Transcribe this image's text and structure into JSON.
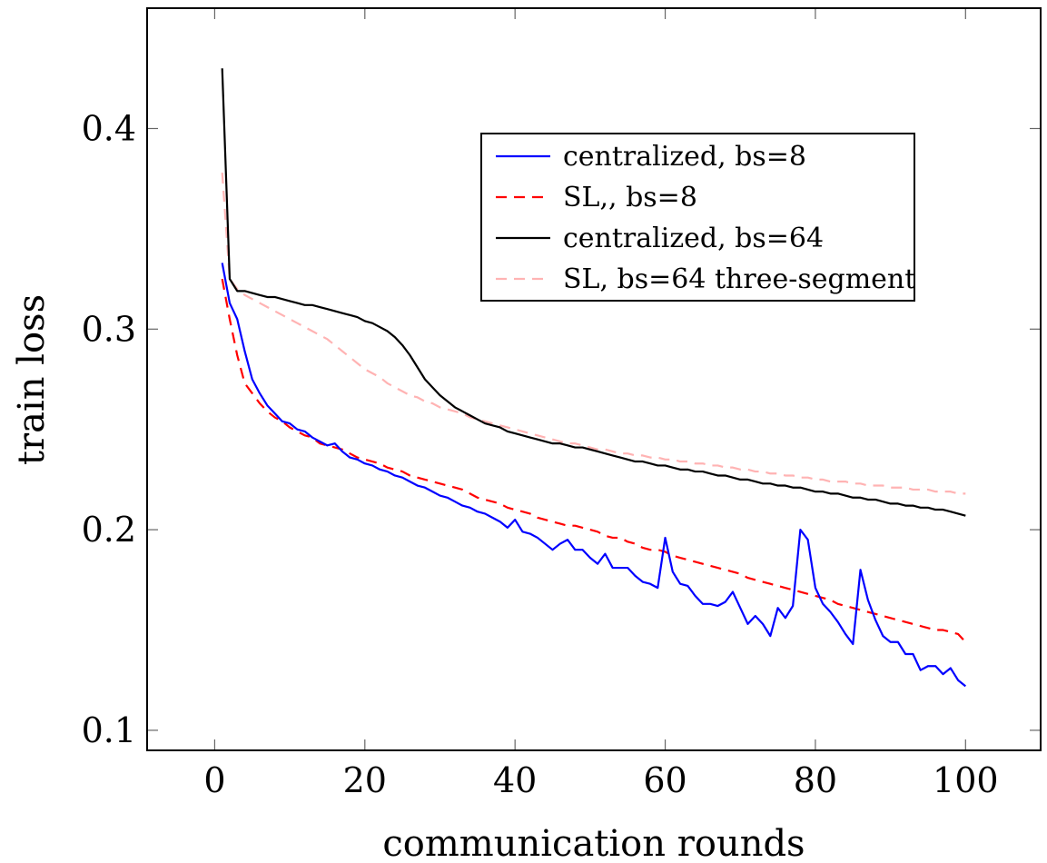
{
  "chart_data": {
    "type": "line",
    "title": "",
    "xlabel": "communication rounds",
    "ylabel": "train loss",
    "xlim": [
      -9,
      110
    ],
    "ylim": [
      0.09,
      0.46
    ],
    "xticks": [
      0,
      20,
      40,
      60,
      80,
      100
    ],
    "yticks": [
      0.1,
      0.2,
      0.3,
      0.4
    ],
    "xtick_labels": [
      "0",
      "20",
      "40",
      "60",
      "80",
      "100"
    ],
    "ytick_labels": [
      "0.1",
      "0.2",
      "0.3",
      "0.4"
    ],
    "grid": false,
    "legend_position": "upper-right",
    "series": [
      {
        "name": "centralized, bs=8",
        "color": "#0000ff",
        "dash": "solid",
        "x": [
          1,
          2,
          3,
          4,
          5,
          6,
          7,
          8,
          9,
          10,
          11,
          12,
          13,
          14,
          15,
          16,
          17,
          18,
          19,
          20,
          21,
          22,
          23,
          24,
          25,
          26,
          27,
          28,
          29,
          30,
          31,
          32,
          33,
          34,
          35,
          36,
          37,
          38,
          39,
          40,
          41,
          42,
          43,
          44,
          45,
          46,
          47,
          48,
          49,
          50,
          51,
          52,
          53,
          54,
          55,
          56,
          57,
          58,
          59,
          60,
          61,
          62,
          63,
          64,
          65,
          66,
          67,
          68,
          69,
          70,
          71,
          72,
          73,
          74,
          75,
          76,
          77,
          78,
          79,
          80,
          81,
          82,
          83,
          84,
          85,
          86,
          87,
          88,
          89,
          90,
          91,
          92,
          93,
          94,
          95,
          96,
          97,
          98,
          99,
          100
        ],
        "y": [
          0.333,
          0.313,
          0.305,
          0.289,
          0.275,
          0.268,
          0.262,
          0.258,
          0.254,
          0.253,
          0.25,
          0.249,
          0.246,
          0.244,
          0.242,
          0.243,
          0.239,
          0.236,
          0.235,
          0.233,
          0.232,
          0.23,
          0.229,
          0.227,
          0.226,
          0.224,
          0.222,
          0.221,
          0.219,
          0.217,
          0.216,
          0.214,
          0.212,
          0.211,
          0.209,
          0.208,
          0.206,
          0.204,
          0.201,
          0.205,
          0.199,
          0.198,
          0.196,
          0.193,
          0.19,
          0.193,
          0.195,
          0.19,
          0.19,
          0.186,
          0.183,
          0.188,
          0.181,
          0.181,
          0.181,
          0.177,
          0.174,
          0.173,
          0.171,
          0.196,
          0.179,
          0.173,
          0.172,
          0.167,
          0.163,
          0.163,
          0.162,
          0.164,
          0.169,
          0.161,
          0.153,
          0.157,
          0.153,
          0.147,
          0.161,
          0.156,
          0.162,
          0.2,
          0.195,
          0.171,
          0.163,
          0.159,
          0.154,
          0.148,
          0.143,
          0.18,
          0.165,
          0.155,
          0.147,
          0.144,
          0.144,
          0.138,
          0.138,
          0.13,
          0.132,
          0.132,
          0.128,
          0.131,
          0.125,
          0.122
        ]
      },
      {
        "name": "SL,, bs=8",
        "color": "#ff0000",
        "dash": "dashed",
        "x": [
          1,
          2,
          3,
          4,
          5,
          6,
          7,
          8,
          9,
          10,
          11,
          12,
          13,
          14,
          15,
          16,
          17,
          18,
          19,
          20,
          21,
          22,
          23,
          24,
          25,
          26,
          27,
          28,
          29,
          30,
          31,
          32,
          33,
          34,
          35,
          36,
          37,
          38,
          39,
          40,
          41,
          42,
          43,
          44,
          45,
          46,
          47,
          48,
          49,
          50,
          51,
          52,
          53,
          54,
          55,
          56,
          57,
          58,
          59,
          60,
          61,
          62,
          63,
          64,
          65,
          66,
          67,
          68,
          69,
          70,
          71,
          72,
          73,
          74,
          75,
          76,
          77,
          78,
          79,
          80,
          81,
          82,
          83,
          84,
          85,
          86,
          87,
          88,
          89,
          90,
          91,
          92,
          93,
          94,
          95,
          96,
          97,
          98,
          99,
          100
        ],
        "y": [
          0.325,
          0.305,
          0.287,
          0.273,
          0.268,
          0.263,
          0.259,
          0.256,
          0.254,
          0.251,
          0.249,
          0.247,
          0.246,
          0.243,
          0.242,
          0.241,
          0.24,
          0.238,
          0.236,
          0.235,
          0.234,
          0.233,
          0.231,
          0.23,
          0.229,
          0.227,
          0.226,
          0.225,
          0.224,
          0.223,
          0.222,
          0.221,
          0.22,
          0.218,
          0.216,
          0.215,
          0.214,
          0.213,
          0.211,
          0.21,
          0.209,
          0.208,
          0.206,
          0.205,
          0.204,
          0.203,
          0.202,
          0.202,
          0.201,
          0.2,
          0.199,
          0.197,
          0.196,
          0.196,
          0.194,
          0.193,
          0.191,
          0.19,
          0.19,
          0.189,
          0.187,
          0.186,
          0.185,
          0.184,
          0.183,
          0.182,
          0.181,
          0.18,
          0.179,
          0.178,
          0.176,
          0.175,
          0.174,
          0.173,
          0.172,
          0.171,
          0.17,
          0.169,
          0.168,
          0.167,
          0.166,
          0.165,
          0.163,
          0.162,
          0.161,
          0.16,
          0.159,
          0.158,
          0.157,
          0.156,
          0.155,
          0.154,
          0.153,
          0.152,
          0.151,
          0.15,
          0.15,
          0.149,
          0.148,
          0.144
        ]
      },
      {
        "name": "centralized, bs=64",
        "color": "#000000",
        "dash": "solid",
        "x": [
          1,
          2,
          3,
          4,
          5,
          6,
          7,
          8,
          9,
          10,
          11,
          12,
          13,
          14,
          15,
          16,
          17,
          18,
          19,
          20,
          21,
          22,
          23,
          24,
          25,
          26,
          27,
          28,
          29,
          30,
          31,
          32,
          33,
          34,
          35,
          36,
          37,
          38,
          39,
          40,
          41,
          42,
          43,
          44,
          45,
          46,
          47,
          48,
          49,
          50,
          51,
          52,
          53,
          54,
          55,
          56,
          57,
          58,
          59,
          60,
          61,
          62,
          63,
          64,
          65,
          66,
          67,
          68,
          69,
          70,
          71,
          72,
          73,
          74,
          75,
          76,
          77,
          78,
          79,
          80,
          81,
          82,
          83,
          84,
          85,
          86,
          87,
          88,
          89,
          90,
          91,
          92,
          93,
          94,
          95,
          96,
          97,
          98,
          99,
          100
        ],
        "y": [
          0.43,
          0.325,
          0.319,
          0.319,
          0.318,
          0.317,
          0.316,
          0.316,
          0.315,
          0.314,
          0.313,
          0.312,
          0.312,
          0.311,
          0.31,
          0.309,
          0.308,
          0.307,
          0.306,
          0.304,
          0.303,
          0.301,
          0.299,
          0.296,
          0.292,
          0.287,
          0.281,
          0.275,
          0.271,
          0.267,
          0.264,
          0.261,
          0.259,
          0.257,
          0.255,
          0.253,
          0.252,
          0.251,
          0.249,
          0.248,
          0.247,
          0.246,
          0.245,
          0.244,
          0.243,
          0.243,
          0.242,
          0.241,
          0.241,
          0.24,
          0.239,
          0.238,
          0.237,
          0.236,
          0.235,
          0.234,
          0.234,
          0.233,
          0.232,
          0.232,
          0.231,
          0.23,
          0.23,
          0.229,
          0.229,
          0.228,
          0.227,
          0.227,
          0.226,
          0.225,
          0.225,
          0.224,
          0.223,
          0.223,
          0.222,
          0.222,
          0.221,
          0.221,
          0.22,
          0.219,
          0.219,
          0.218,
          0.218,
          0.217,
          0.216,
          0.216,
          0.215,
          0.215,
          0.214,
          0.213,
          0.213,
          0.212,
          0.212,
          0.211,
          0.211,
          0.21,
          0.21,
          0.209,
          0.208,
          0.207
        ]
      },
      {
        "name": "SL, bs=64 three-segment",
        "color": "#ffb3b3",
        "dash": "dashed",
        "x": [
          1,
          2,
          3,
          4,
          5,
          6,
          7,
          8,
          9,
          10,
          11,
          12,
          13,
          14,
          15,
          16,
          17,
          18,
          19,
          20,
          21,
          22,
          23,
          24,
          25,
          26,
          27,
          28,
          29,
          30,
          31,
          32,
          33,
          34,
          35,
          36,
          37,
          38,
          39,
          40,
          41,
          42,
          43,
          44,
          45,
          46,
          47,
          48,
          49,
          50,
          51,
          52,
          53,
          54,
          55,
          56,
          57,
          58,
          59,
          60,
          61,
          62,
          63,
          64,
          65,
          66,
          67,
          68,
          69,
          70,
          71,
          72,
          73,
          74,
          75,
          76,
          77,
          78,
          79,
          80,
          81,
          82,
          83,
          84,
          85,
          86,
          87,
          88,
          89,
          90,
          91,
          92,
          93,
          94,
          95,
          96,
          97,
          98,
          99,
          100
        ],
        "y": [
          0.378,
          0.325,
          0.32,
          0.317,
          0.315,
          0.313,
          0.311,
          0.309,
          0.307,
          0.305,
          0.303,
          0.301,
          0.299,
          0.297,
          0.295,
          0.292,
          0.289,
          0.286,
          0.283,
          0.28,
          0.278,
          0.276,
          0.273,
          0.271,
          0.269,
          0.267,
          0.266,
          0.264,
          0.263,
          0.261,
          0.26,
          0.259,
          0.258,
          0.256,
          0.255,
          0.254,
          0.253,
          0.252,
          0.251,
          0.25,
          0.249,
          0.248,
          0.247,
          0.246,
          0.245,
          0.244,
          0.243,
          0.243,
          0.242,
          0.241,
          0.24,
          0.24,
          0.239,
          0.238,
          0.238,
          0.237,
          0.237,
          0.236,
          0.236,
          0.235,
          0.235,
          0.234,
          0.234,
          0.233,
          0.233,
          0.232,
          0.232,
          0.231,
          0.231,
          0.23,
          0.23,
          0.229,
          0.229,
          0.228,
          0.228,
          0.227,
          0.227,
          0.226,
          0.226,
          0.225,
          0.225,
          0.224,
          0.224,
          0.224,
          0.223,
          0.223,
          0.222,
          0.222,
          0.222,
          0.221,
          0.221,
          0.221,
          0.22,
          0.22,
          0.22,
          0.219,
          0.219,
          0.219,
          0.218,
          0.218
        ]
      }
    ]
  }
}
